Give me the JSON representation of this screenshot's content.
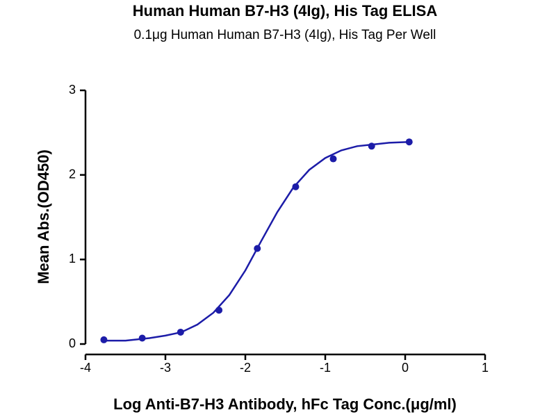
{
  "chart_data": {
    "type": "scatter",
    "title": "Human Human B7-H3 (4Ig), His Tag ELISA",
    "subtitle": "0.1μg Human Human B7-H3 (4Ig), His Tag Per Well",
    "x_label": "Log Anti-B7-H3 Antibody, hFc Tag Conc.(μg/ml)",
    "y_label": "Mean Abs.(OD450)",
    "xlim": [
      -4,
      1
    ],
    "xticks": [
      -4,
      -3,
      -2,
      -1,
      0,
      1
    ],
    "ylim": [
      0,
      3
    ],
    "yticks": [
      0,
      1,
      2,
      3
    ],
    "series": [
      {
        "style": "markers",
        "color": "#1c1ca8",
        "x": [
          -3.77,
          -3.29,
          -2.81,
          -2.33,
          -1.85,
          -1.37,
          -0.9,
          -0.42,
          0.05
        ],
        "values": [
          0.05,
          0.07,
          0.14,
          0.4,
          1.13,
          1.86,
          2.19,
          2.34,
          2.39
        ]
      },
      {
        "style": "line",
        "color": "#1c1ca8",
        "x": [
          -3.8,
          -3.5,
          -3.2,
          -3.0,
          -2.8,
          -2.6,
          -2.4,
          -2.2,
          -2.0,
          -1.8,
          -1.6,
          -1.4,
          -1.2,
          -1.0,
          -0.8,
          -0.6,
          -0.4,
          -0.2,
          0.05
        ],
        "values": [
          0.04,
          0.04,
          0.07,
          0.1,
          0.14,
          0.23,
          0.37,
          0.58,
          0.87,
          1.22,
          1.56,
          1.85,
          2.06,
          2.2,
          2.29,
          2.34,
          2.36,
          2.38,
          2.39
        ]
      }
    ]
  }
}
